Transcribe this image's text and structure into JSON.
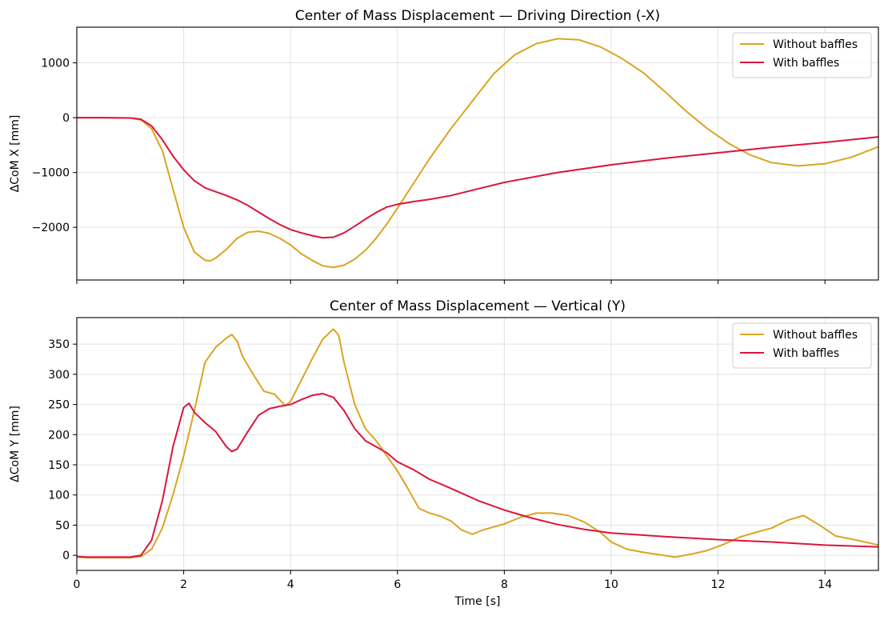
{
  "chart_data": [
    {
      "type": "line",
      "title": "Center of Mass Displacement — Driving Direction (-X)",
      "xlabel": "",
      "ylabel": "ΔCoM X [mm]",
      "xlim": [
        0,
        15
      ],
      "ylim": [
        -2960,
        1650
      ],
      "xticks": [
        0,
        2,
        4,
        6,
        8,
        10,
        12,
        14
      ],
      "xtick_labels_shown": false,
      "yticks": [
        -2000,
        -1000,
        0,
        1000
      ],
      "ytick_labels": [
        "−2000",
        "−1000",
        "0",
        "1000"
      ],
      "grid": true,
      "legend_position": "top-right",
      "series": [
        {
          "name": "Without baffles",
          "color": "#DAA520",
          "x": [
            0,
            0.5,
            1.0,
            1.2,
            1.4,
            1.6,
            1.8,
            2.0,
            2.2,
            2.4,
            2.5,
            2.6,
            2.8,
            3.0,
            3.2,
            3.4,
            3.6,
            3.8,
            4.0,
            4.2,
            4.4,
            4.6,
            4.8,
            5.0,
            5.2,
            5.4,
            5.6,
            5.8,
            6.0,
            6.3,
            6.6,
            7.0,
            7.4,
            7.8,
            8.2,
            8.6,
            9.0,
            9.4,
            9.8,
            10.2,
            10.6,
            11.0,
            11.4,
            11.8,
            12.2,
            12.6,
            13.0,
            13.5,
            14.0,
            14.5,
            15.0
          ],
          "values": [
            0,
            0,
            -5,
            -40,
            -200,
            -600,
            -1300,
            -2000,
            -2450,
            -2600,
            -2610,
            -2560,
            -2400,
            -2200,
            -2090,
            -2070,
            -2110,
            -2200,
            -2320,
            -2480,
            -2600,
            -2700,
            -2730,
            -2690,
            -2580,
            -2420,
            -2200,
            -1940,
            -1650,
            -1200,
            -750,
            -200,
            300,
            800,
            1150,
            1350,
            1440,
            1420,
            1290,
            1080,
            820,
            480,
            120,
            -200,
            -470,
            -680,
            -820,
            -880,
            -840,
            -720,
            -530
          ]
        },
        {
          "name": "With baffles",
          "color": "#DC143C",
          "x": [
            0,
            0.5,
            1.0,
            1.2,
            1.4,
            1.6,
            1.8,
            2.0,
            2.2,
            2.4,
            2.6,
            2.8,
            3.0,
            3.2,
            3.4,
            3.6,
            3.8,
            4.0,
            4.2,
            4.4,
            4.6,
            4.8,
            5.0,
            5.2,
            5.4,
            5.6,
            5.8,
            6.0,
            6.3,
            6.6,
            7.0,
            7.5,
            8.0,
            9.0,
            10.0,
            11.0,
            12.0,
            13.0,
            14.0,
            15.0
          ],
          "values": [
            0,
            0,
            -5,
            -30,
            -150,
            -400,
            -700,
            -950,
            -1150,
            -1280,
            -1350,
            -1420,
            -1500,
            -1600,
            -1720,
            -1840,
            -1950,
            -2040,
            -2100,
            -2150,
            -2190,
            -2180,
            -2100,
            -1980,
            -1850,
            -1730,
            -1630,
            -1580,
            -1530,
            -1490,
            -1420,
            -1300,
            -1180,
            -1000,
            -860,
            -740,
            -640,
            -540,
            -450,
            -350
          ]
        }
      ]
    },
    {
      "type": "line",
      "title": "Center of Mass Displacement — Vertical (Y)",
      "xlabel": "Time [s]",
      "ylabel": "ΔCoM Y [mm]",
      "xlim": [
        0,
        15
      ],
      "ylim": [
        -25,
        394
      ],
      "xticks": [
        0,
        2,
        4,
        6,
        8,
        10,
        12,
        14
      ],
      "xtick_labels": [
        "0",
        "2",
        "4",
        "6",
        "8",
        "10",
        "12",
        "14"
      ],
      "yticks": [
        0,
        50,
        100,
        150,
        200,
        250,
        300,
        350
      ],
      "ytick_labels": [
        "0",
        "50",
        "100",
        "150",
        "200",
        "250",
        "300",
        "350"
      ],
      "grid": true,
      "legend_position": "top-right",
      "series": [
        {
          "name": "Without baffles",
          "color": "#DAA520",
          "x": [
            0,
            0.2,
            0.5,
            1.0,
            1.2,
            1.4,
            1.6,
            1.8,
            2.0,
            2.2,
            2.4,
            2.6,
            2.8,
            2.9,
            3.0,
            3.1,
            3.3,
            3.5,
            3.7,
            3.9,
            4.0,
            4.2,
            4.4,
            4.6,
            4.8,
            4.9,
            5.0,
            5.2,
            5.4,
            5.6,
            5.8,
            6.0,
            6.2,
            6.4,
            6.6,
            6.8,
            7.0,
            7.2,
            7.4,
            7.6,
            7.8,
            8.0,
            8.3,
            8.6,
            8.9,
            9.2,
            9.5,
            9.8,
            10.0,
            10.3,
            10.6,
            10.9,
            11.2,
            11.5,
            11.8,
            12.1,
            12.4,
            12.7,
            13.0,
            13.3,
            13.6,
            13.9,
            14.2,
            14.6,
            15.0
          ],
          "values": [
            -3,
            -4,
            -4,
            -4,
            -2,
            10,
            45,
            100,
            165,
            240,
            320,
            345,
            360,
            366,
            355,
            330,
            300,
            272,
            267,
            248,
            255,
            290,
            325,
            358,
            375,
            365,
            320,
            250,
            210,
            190,
            165,
            140,
            110,
            78,
            70,
            65,
            57,
            42,
            35,
            42,
            47,
            52,
            63,
            70,
            70,
            66,
            55,
            38,
            22,
            10,
            5,
            1,
            -3,
            2,
            8,
            18,
            30,
            38,
            45,
            58,
            66,
            50,
            32,
            25,
            17
          ]
        },
        {
          "name": "With baffles",
          "color": "#DC143C",
          "x": [
            0,
            0.2,
            0.5,
            1.0,
            1.2,
            1.4,
            1.6,
            1.8,
            2.0,
            2.1,
            2.2,
            2.4,
            2.6,
            2.8,
            2.9,
            3.0,
            3.2,
            3.4,
            3.6,
            3.8,
            4.0,
            4.2,
            4.4,
            4.6,
            4.8,
            5.0,
            5.2,
            5.4,
            5.6,
            5.8,
            6.0,
            6.3,
            6.6,
            7.0,
            7.5,
            8.0,
            8.5,
            9.0,
            9.5,
            10.0,
            11.0,
            12.0,
            13.0,
            14.0,
            15.0
          ],
          "values": [
            -2,
            -3,
            -3,
            -3,
            0,
            25,
            90,
            180,
            245,
            252,
            237,
            220,
            205,
            180,
            172,
            176,
            205,
            232,
            243,
            247,
            250,
            258,
            265,
            268,
            262,
            240,
            210,
            190,
            180,
            170,
            155,
            142,
            126,
            111,
            91,
            75,
            62,
            51,
            43,
            37,
            31,
            26,
            22,
            17,
            14
          ]
        }
      ]
    }
  ]
}
